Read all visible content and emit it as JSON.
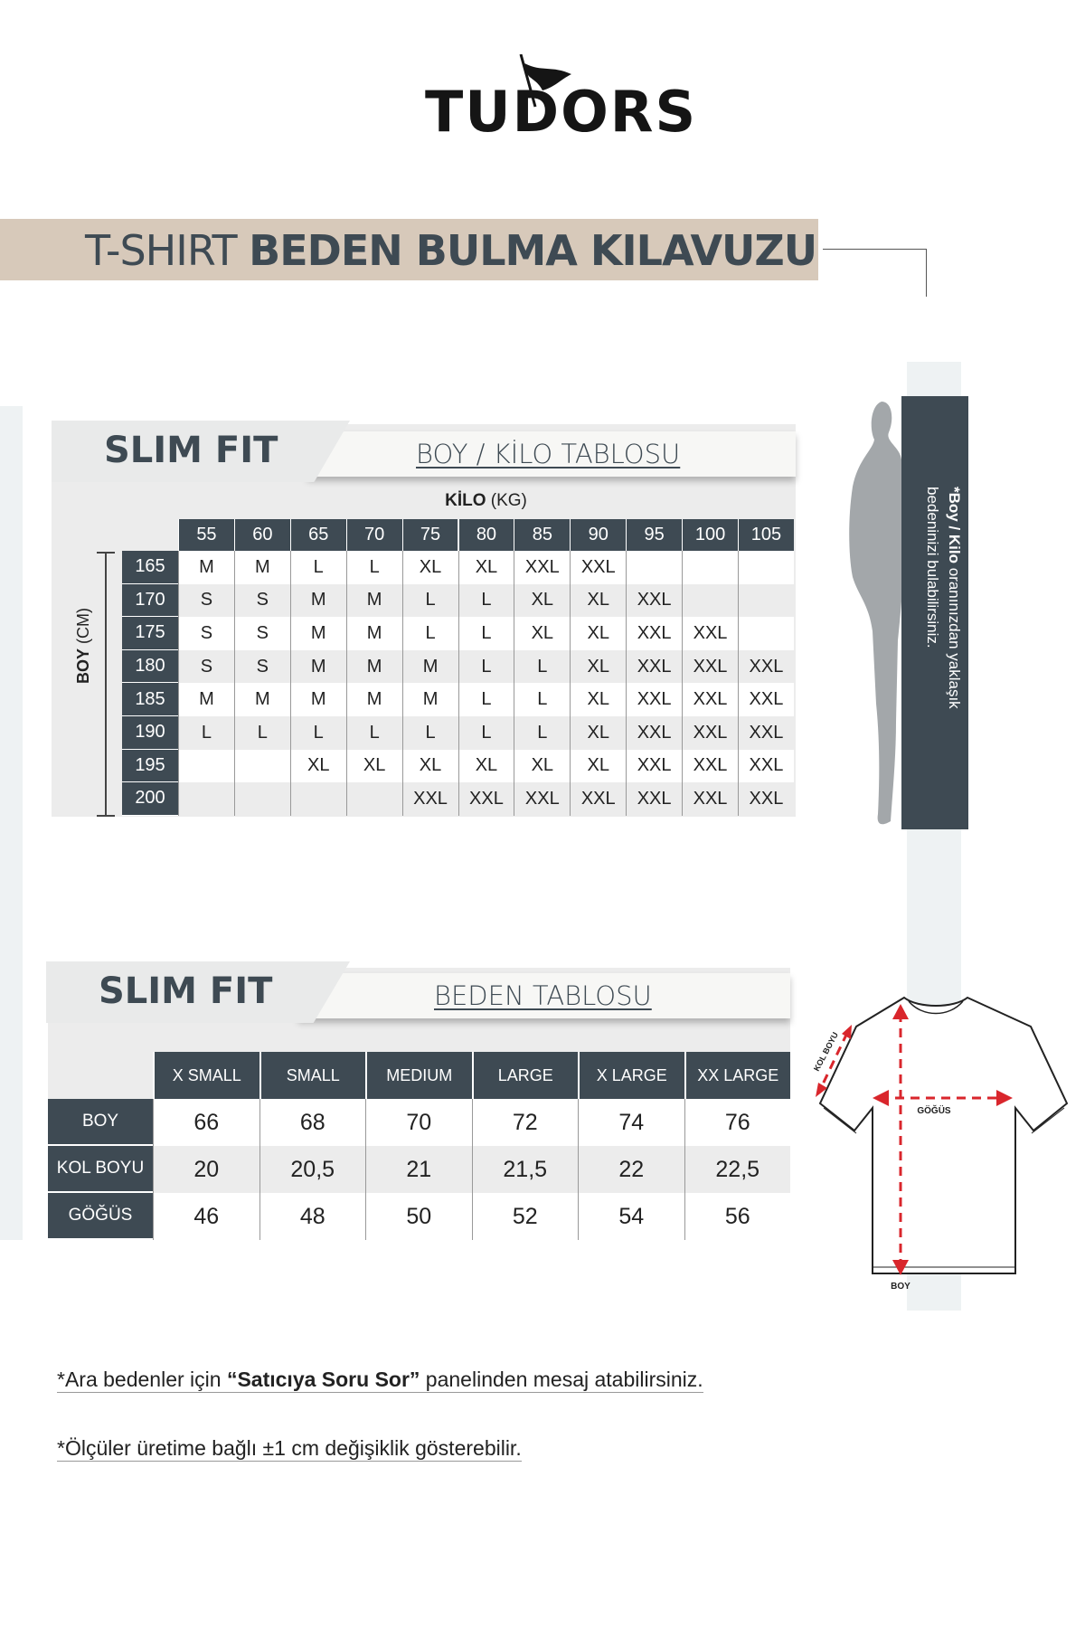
{
  "brand": {
    "logo_text": "TUDORS"
  },
  "banner": {
    "light": "T-SHIRT ",
    "bold": "BEDEN BULMA KILAVUZU",
    "color": "#d7c9ba"
  },
  "colors": {
    "dark": "#3e4a53",
    "row_alt": "#ececec",
    "arrow": "#d9262c"
  },
  "weight_table": {
    "fit": "SLIM FIT",
    "title": "BOY / KİLO TABLOSU",
    "kilo_label_bold": "KİLO",
    "kilo_label_unit": " (KG)",
    "boy_label_bold": "BOY",
    "boy_label_unit": " (CM)",
    "weights": [
      "55",
      "60",
      "65",
      "70",
      "75",
      "80",
      "85",
      "90",
      "95",
      "100",
      "105"
    ],
    "rows": [
      {
        "height": "165",
        "sizes": [
          "M",
          "M",
          "L",
          "L",
          "XL",
          "XL",
          "XXL",
          "XXL",
          "",
          "",
          ""
        ]
      },
      {
        "height": "170",
        "sizes": [
          "S",
          "S",
          "M",
          "M",
          "L",
          "L",
          "XL",
          "XL",
          "XXL",
          "",
          ""
        ]
      },
      {
        "height": "175",
        "sizes": [
          "S",
          "S",
          "M",
          "M",
          "L",
          "L",
          "XL",
          "XL",
          "XXL",
          "XXL",
          ""
        ]
      },
      {
        "height": "180",
        "sizes": [
          "S",
          "S",
          "M",
          "M",
          "M",
          "L",
          "L",
          "XL",
          "XXL",
          "XXL",
          "XXL"
        ]
      },
      {
        "height": "185",
        "sizes": [
          "M",
          "M",
          "M",
          "M",
          "M",
          "L",
          "L",
          "XL",
          "XXL",
          "XXL",
          "XXL"
        ]
      },
      {
        "height": "190",
        "sizes": [
          "L",
          "L",
          "L",
          "L",
          "L",
          "L",
          "L",
          "XL",
          "XXL",
          "XXL",
          "XXL"
        ]
      },
      {
        "height": "195",
        "sizes": [
          "",
          "",
          "XL",
          "XL",
          "XL",
          "XL",
          "XL",
          "XL",
          "XXL",
          "XXL",
          "XXL"
        ]
      },
      {
        "height": "200",
        "sizes": [
          "",
          "",
          "",
          "",
          "XXL",
          "XXL",
          "XXL",
          "XXL",
          "XXL",
          "XXL",
          "XXL"
        ]
      }
    ]
  },
  "side_note": {
    "bold": "*Boy / Kilo",
    "rest": " oranınızdan yaklaşık",
    "line2": "bedeninizi bulabilirsiniz."
  },
  "size_table": {
    "fit": "SLIM FIT",
    "title": "BEDEN TABLOSU",
    "sizes": [
      "X SMALL",
      "SMALL",
      "MEDIUM",
      "LARGE",
      "X LARGE",
      "XX LARGE"
    ],
    "rows": [
      {
        "label": "BOY",
        "values": [
          "66",
          "68",
          "70",
          "72",
          "74",
          "76"
        ]
      },
      {
        "label": "KOL BOYU",
        "values": [
          "20",
          "20,5",
          "21",
          "21,5",
          "22",
          "22,5"
        ]
      },
      {
        "label": "GÖĞÜS",
        "values": [
          "46",
          "48",
          "50",
          "52",
          "54",
          "56"
        ]
      }
    ]
  },
  "tshirt_labels": {
    "sleeve": "KOL BOYU",
    "chest": "GÖĞÜS",
    "length": "BOY"
  },
  "notes": {
    "note1_pre": "*Ara bedenler için ",
    "note1_bold": "“Satıcıya Soru Sor”",
    "note1_post": " panelinden mesaj atabilirsiniz.",
    "note2": "*Ölçüler üretime bağlı ±1 cm değişiklik gösterebilir."
  }
}
